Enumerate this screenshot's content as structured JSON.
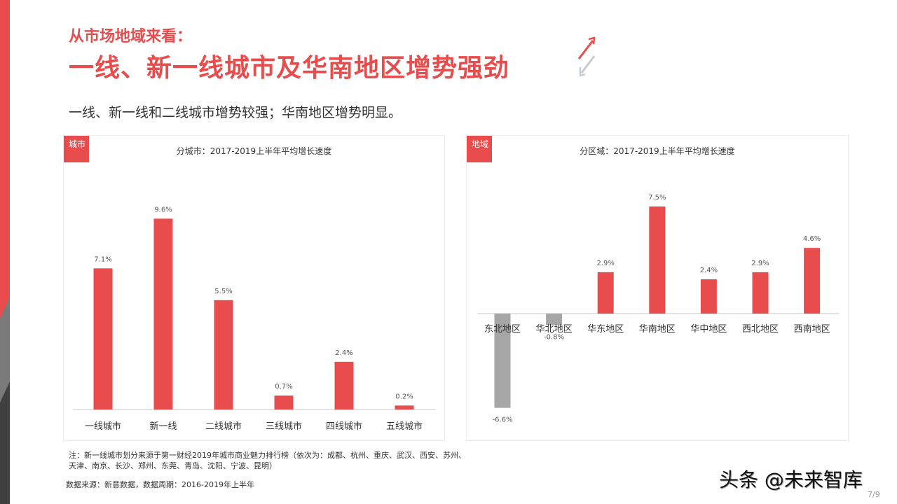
{
  "header": {
    "kicker": "从市场地域来看：",
    "title": "一线、新一线城市及华南地区增势强劲",
    "subtitle": "一线、新一线和二线城市增势较强；华南地区增势明显。"
  },
  "colors": {
    "accent": "#e84c4c",
    "negative": "#a6a6a6",
    "dark": "#404040"
  },
  "chart_data": [
    {
      "type": "bar",
      "tag": "城市",
      "title": "分城市：2017-2019上半年平均增长速度",
      "categories": [
        "一线城市",
        "新一线",
        "二线城市",
        "三线城市",
        "四线城市",
        "五线城市"
      ],
      "values": [
        7.1,
        9.6,
        5.5,
        0.7,
        2.4,
        0.2
      ],
      "labels": [
        "7.1%",
        "9.6%",
        "5.5%",
        "0.7%",
        "2.4%",
        "0.2%"
      ],
      "unit": "%"
    },
    {
      "type": "bar",
      "tag": "地域",
      "title": "分区域：2017-2019上半年平均增长速度",
      "categories": [
        "东北地区",
        "华北地区",
        "华东地区",
        "华南地区",
        "华中地区",
        "西北地区",
        "西南地区"
      ],
      "values": [
        -6.6,
        -0.8,
        2.9,
        7.5,
        2.4,
        2.9,
        4.6
      ],
      "labels": [
        "-6.6%",
        "-0.8%",
        "2.9%",
        "7.5%",
        "2.4%",
        "2.9%",
        "4.6%"
      ],
      "unit": "%"
    }
  ],
  "footer": {
    "note": "注：新一线城市划分来源于第一财经2019年城市商业魅力排行榜（依次为：成都、杭州、重庆、武汉、西安、苏州、天津、南京、长沙、郑州、东莞、青岛、沈阳、宁波、昆明）",
    "source": "数据来源：新意数据，数据周期：2016-2019年上半年",
    "watermark": "头条 @未来智库",
    "page": "7/9"
  }
}
